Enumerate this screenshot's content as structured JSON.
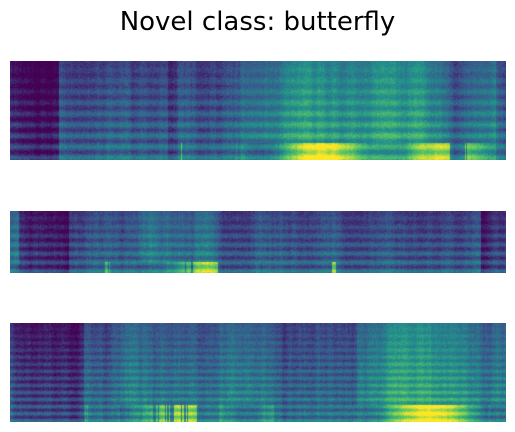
{
  "figure": {
    "title": "Novel class: butterfly"
  },
  "colormap": [
    "#440154",
    "#3b528b",
    "#21918c",
    "#5ec962",
    "#fde725"
  ],
  "spectrograms": [
    {
      "label": "",
      "colormap_name": "viridis"
    },
    {
      "label": "",
      "colormap_name": "viridis"
    },
    {
      "label": "",
      "colormap_name": "viridis"
    }
  ]
}
